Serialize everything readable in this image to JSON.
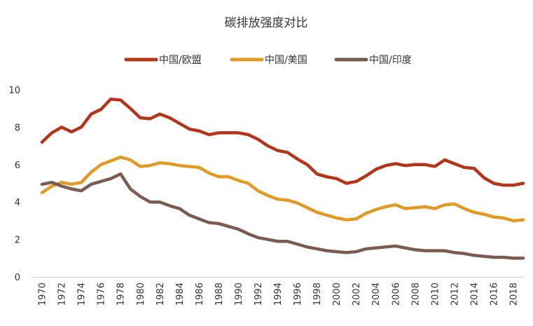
{
  "chart_data": {
    "type": "line",
    "title": "碳排放强度对比",
    "xlabel": "",
    "ylabel": "",
    "ylim": [
      0,
      10
    ],
    "yticks": [
      0,
      2,
      4,
      6,
      8,
      10
    ],
    "xlim": [
      1970,
      2019
    ],
    "xticks": [
      1970,
      1972,
      1974,
      1976,
      1978,
      1980,
      1982,
      1984,
      1986,
      1988,
      1990,
      1992,
      1994,
      1996,
      1998,
      2000,
      2002,
      2004,
      2006,
      2008,
      2010,
      2012,
      2014,
      2016,
      2018
    ],
    "grid": false,
    "legend_position": "top-center",
    "x": [
      1970,
      1971,
      1972,
      1973,
      1974,
      1975,
      1976,
      1977,
      1978,
      1979,
      1980,
      1981,
      1982,
      1983,
      1984,
      1985,
      1986,
      1987,
      1988,
      1989,
      1990,
      1991,
      1992,
      1993,
      1994,
      1995,
      1996,
      1997,
      1998,
      1999,
      2000,
      2001,
      2002,
      2003,
      2004,
      2005,
      2006,
      2007,
      2008,
      2009,
      2010,
      2011,
      2012,
      2013,
      2014,
      2015,
      2016,
      2017,
      2018,
      2019
    ],
    "series": [
      {
        "name": "中国/欧盟",
        "color": "#B2361A",
        "values": [
          7.2,
          7.7,
          8.0,
          7.75,
          8.0,
          8.7,
          8.95,
          9.5,
          9.45,
          9.0,
          8.5,
          8.45,
          8.7,
          8.5,
          8.2,
          7.9,
          7.8,
          7.6,
          7.7,
          7.7,
          7.7,
          7.6,
          7.35,
          7.0,
          6.75,
          6.65,
          6.3,
          6.0,
          5.5,
          5.35,
          5.25,
          5.0,
          5.1,
          5.4,
          5.75,
          5.95,
          6.05,
          5.95,
          6.0,
          6.0,
          5.9,
          6.25,
          6.05,
          5.85,
          5.8,
          5.3,
          5.0,
          4.9,
          4.9,
          5.0
        ]
      },
      {
        "name": "中国/美国",
        "color": "#E29A27",
        "values": [
          4.5,
          4.85,
          5.05,
          4.95,
          5.05,
          5.6,
          6.0,
          6.2,
          6.4,
          6.25,
          5.9,
          5.95,
          6.1,
          6.05,
          5.95,
          5.9,
          5.85,
          5.55,
          5.35,
          5.35,
          5.15,
          5.0,
          4.6,
          4.35,
          4.15,
          4.1,
          3.95,
          3.7,
          3.45,
          3.3,
          3.15,
          3.05,
          3.1,
          3.4,
          3.6,
          3.75,
          3.85,
          3.65,
          3.7,
          3.75,
          3.65,
          3.85,
          3.9,
          3.65,
          3.45,
          3.35,
          3.2,
          3.15,
          3.0,
          3.05
        ]
      },
      {
        "name": "中国/印度",
        "color": "#7A5C50",
        "values": [
          4.95,
          5.05,
          4.85,
          4.7,
          4.6,
          4.95,
          5.1,
          5.25,
          5.5,
          4.7,
          4.3,
          4.0,
          4.0,
          3.8,
          3.65,
          3.3,
          3.1,
          2.9,
          2.85,
          2.7,
          2.55,
          2.3,
          2.1,
          2.0,
          1.9,
          1.9,
          1.75,
          1.6,
          1.5,
          1.4,
          1.35,
          1.3,
          1.35,
          1.5,
          1.55,
          1.6,
          1.65,
          1.55,
          1.45,
          1.4,
          1.4,
          1.4,
          1.3,
          1.25,
          1.15,
          1.1,
          1.05,
          1.05,
          1.0,
          1.0
        ]
      }
    ]
  }
}
